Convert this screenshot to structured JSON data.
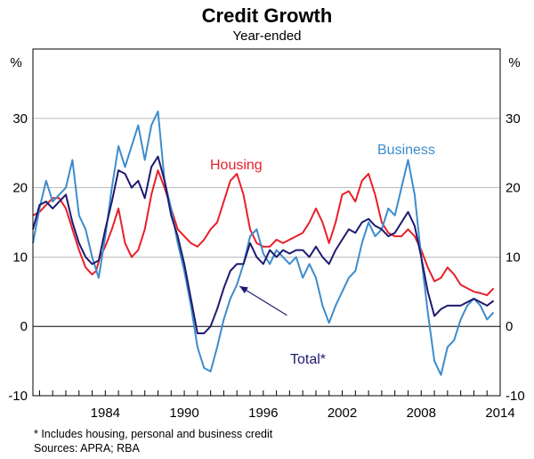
{
  "chart_data": {
    "type": "line",
    "title": "Credit Growth",
    "subtitle": "Year-ended",
    "y_unit_left": "%",
    "y_unit_right": "%",
    "xlim": [
      1978.5,
      2014
    ],
    "ylim": [
      -10,
      40
    ],
    "y_ticks": [
      -10,
      0,
      10,
      20,
      30
    ],
    "x_ticks": [
      1984,
      1990,
      1996,
      2002,
      2008,
      2014
    ],
    "grid": true,
    "series": [
      {
        "name": "Housing",
        "label": "Housing",
        "color": "#e8202a",
        "points": [
          [
            1978.5,
            16
          ],
          [
            1979,
            16.5
          ],
          [
            1979.5,
            17.5
          ],
          [
            1980,
            18.5
          ],
          [
            1980.5,
            18.5
          ],
          [
            1981,
            17
          ],
          [
            1981.5,
            14
          ],
          [
            1982,
            11
          ],
          [
            1982.5,
            8.5
          ],
          [
            1983,
            7.5
          ],
          [
            1983.3,
            8
          ],
          [
            1983.6,
            10
          ],
          [
            1984,
            11.5
          ],
          [
            1984.5,
            14
          ],
          [
            1985,
            17
          ],
          [
            1985.5,
            12
          ],
          [
            1986,
            10
          ],
          [
            1986.5,
            11
          ],
          [
            1987,
            14
          ],
          [
            1987.5,
            19
          ],
          [
            1988,
            22.5
          ],
          [
            1988.5,
            20
          ],
          [
            1989,
            17
          ],
          [
            1989.5,
            14
          ],
          [
            1990,
            13
          ],
          [
            1990.5,
            12
          ],
          [
            1991,
            11.5
          ],
          [
            1991.5,
            12.5
          ],
          [
            1992,
            14
          ],
          [
            1992.5,
            15
          ],
          [
            1993,
            18
          ],
          [
            1993.5,
            21
          ],
          [
            1994,
            22
          ],
          [
            1994.5,
            19
          ],
          [
            1995,
            14
          ],
          [
            1995.5,
            12
          ],
          [
            1996,
            11.5
          ],
          [
            1996.5,
            11.5
          ],
          [
            1997,
            12.5
          ],
          [
            1997.5,
            12
          ],
          [
            1998,
            12.5
          ],
          [
            1998.5,
            13
          ],
          [
            1999,
            13.5
          ],
          [
            1999.5,
            15
          ],
          [
            2000,
            17
          ],
          [
            2000.5,
            15
          ],
          [
            2001,
            12
          ],
          [
            2001.5,
            15
          ],
          [
            2002,
            19
          ],
          [
            2002.5,
            19.5
          ],
          [
            2003,
            18
          ],
          [
            2003.5,
            21
          ],
          [
            2004,
            22
          ],
          [
            2004.5,
            19
          ],
          [
            2005,
            15
          ],
          [
            2005.5,
            13.5
          ],
          [
            2006,
            13
          ],
          [
            2006.5,
            13
          ],
          [
            2007,
            14
          ],
          [
            2007.5,
            13
          ],
          [
            2008,
            11
          ],
          [
            2008.5,
            8.5
          ],
          [
            2009,
            6.5
          ],
          [
            2009.5,
            7
          ],
          [
            2010,
            8.5
          ],
          [
            2010.5,
            7.5
          ],
          [
            2011,
            6
          ],
          [
            2011.5,
            5.5
          ],
          [
            2012,
            5
          ],
          [
            2012.5,
            4.8
          ],
          [
            2013,
            4.5
          ],
          [
            2013.5,
            5.5
          ]
        ]
      },
      {
        "name": "Business",
        "label": "Business",
        "color": "#3d8ccc",
        "points": [
          [
            1978.5,
            12
          ],
          [
            1979,
            17
          ],
          [
            1979.5,
            21
          ],
          [
            1980,
            18
          ],
          [
            1980.5,
            19
          ],
          [
            1981,
            20
          ],
          [
            1981.5,
            24
          ],
          [
            1982,
            16
          ],
          [
            1982.5,
            14
          ],
          [
            1983,
            10
          ],
          [
            1983.5,
            7
          ],
          [
            1984,
            13
          ],
          [
            1984.5,
            20
          ],
          [
            1985,
            26
          ],
          [
            1985.5,
            23
          ],
          [
            1986,
            26
          ],
          [
            1986.5,
            29
          ],
          [
            1987,
            24
          ],
          [
            1987.5,
            29
          ],
          [
            1988,
            31
          ],
          [
            1988.5,
            21
          ],
          [
            1989,
            17
          ],
          [
            1989.5,
            12
          ],
          [
            1990,
            8
          ],
          [
            1990.5,
            3
          ],
          [
            1991,
            -3
          ],
          [
            1991.5,
            -6
          ],
          [
            1992,
            -6.5
          ],
          [
            1992.5,
            -3
          ],
          [
            1993,
            1
          ],
          [
            1993.5,
            4
          ],
          [
            1994,
            6
          ],
          [
            1994.5,
            9
          ],
          [
            1995,
            13
          ],
          [
            1995.5,
            14
          ],
          [
            1996,
            10.5
          ],
          [
            1996.5,
            9
          ],
          [
            1997,
            11
          ],
          [
            1997.5,
            10
          ],
          [
            1998,
            9
          ],
          [
            1998.5,
            10
          ],
          [
            1999,
            7
          ],
          [
            1999.5,
            9
          ],
          [
            2000,
            7
          ],
          [
            2000.5,
            3
          ],
          [
            2001,
            0.5
          ],
          [
            2001.5,
            3
          ],
          [
            2002,
            5
          ],
          [
            2002.5,
            7
          ],
          [
            2003,
            8
          ],
          [
            2003.5,
            12
          ],
          [
            2004,
            15
          ],
          [
            2004.5,
            13
          ],
          [
            2005,
            14
          ],
          [
            2005.5,
            17
          ],
          [
            2006,
            16
          ],
          [
            2006.5,
            20
          ],
          [
            2007,
            24
          ],
          [
            2007.5,
            19
          ],
          [
            2008,
            10
          ],
          [
            2008.5,
            2
          ],
          [
            2009,
            -5
          ],
          [
            2009.5,
            -7
          ],
          [
            2010,
            -3
          ],
          [
            2010.5,
            -2
          ],
          [
            2011,
            1
          ],
          [
            2011.5,
            3
          ],
          [
            2012,
            4
          ],
          [
            2012.5,
            3
          ],
          [
            2013,
            1
          ],
          [
            2013.5,
            2
          ]
        ]
      },
      {
        "name": "Total*",
        "label": "Total*",
        "color": "#1f1a6e",
        "points": [
          [
            1978.5,
            14
          ],
          [
            1979,
            17.5
          ],
          [
            1979.5,
            18
          ],
          [
            1980,
            17
          ],
          [
            1980.5,
            18
          ],
          [
            1981,
            19
          ],
          [
            1981.5,
            15
          ],
          [
            1982,
            12
          ],
          [
            1982.5,
            10
          ],
          [
            1983,
            9
          ],
          [
            1983.5,
            9.5
          ],
          [
            1984,
            14
          ],
          [
            1984.5,
            18
          ],
          [
            1985,
            22.5
          ],
          [
            1985.5,
            22
          ],
          [
            1986,
            20
          ],
          [
            1986.5,
            21
          ],
          [
            1987,
            18.5
          ],
          [
            1987.5,
            23
          ],
          [
            1988,
            24.5
          ],
          [
            1988.5,
            21
          ],
          [
            1989,
            16
          ],
          [
            1989.5,
            13
          ],
          [
            1990,
            9
          ],
          [
            1990.5,
            4
          ],
          [
            1991,
            -1
          ],
          [
            1991.5,
            -1
          ],
          [
            1992,
            0
          ],
          [
            1992.5,
            2.5
          ],
          [
            1993,
            5.5
          ],
          [
            1993.5,
            8
          ],
          [
            1994,
            9
          ],
          [
            1994.5,
            9
          ],
          [
            1995,
            12
          ],
          [
            1995.5,
            10
          ],
          [
            1996,
            9
          ],
          [
            1996.5,
            11
          ],
          [
            1997,
            10
          ],
          [
            1997.5,
            11
          ],
          [
            1998,
            10.5
          ],
          [
            1998.5,
            11
          ],
          [
            1999,
            11
          ],
          [
            1999.5,
            10
          ],
          [
            2000,
            11.5
          ],
          [
            2000.5,
            10
          ],
          [
            2001,
            9
          ],
          [
            2001.5,
            11
          ],
          [
            2002,
            12.5
          ],
          [
            2002.5,
            14
          ],
          [
            2003,
            13.5
          ],
          [
            2003.5,
            15
          ],
          [
            2004,
            15.5
          ],
          [
            2004.5,
            14.5
          ],
          [
            2005,
            14
          ],
          [
            2005.5,
            13
          ],
          [
            2006,
            13.5
          ],
          [
            2006.5,
            15
          ],
          [
            2007,
            16.5
          ],
          [
            2007.5,
            14.5
          ],
          [
            2008,
            10
          ],
          [
            2008.5,
            5
          ],
          [
            2009,
            1.5
          ],
          [
            2009.5,
            2.5
          ],
          [
            2010,
            3
          ],
          [
            2010.5,
            3
          ],
          [
            2011,
            3
          ],
          [
            2011.5,
            3.5
          ],
          [
            2012,
            4
          ],
          [
            2012.5,
            3.5
          ],
          [
            2013,
            3
          ],
          [
            2013.5,
            3.7
          ]
        ]
      }
    ],
    "annotations": {
      "total_arrow_from": [
        1997.8,
        1.6
      ],
      "total_arrow_to": [
        1994.2,
        5.8
      ]
    }
  },
  "footnote": "*    Includes housing, personal and business credit",
  "sources": "Sources: APRA; RBA"
}
